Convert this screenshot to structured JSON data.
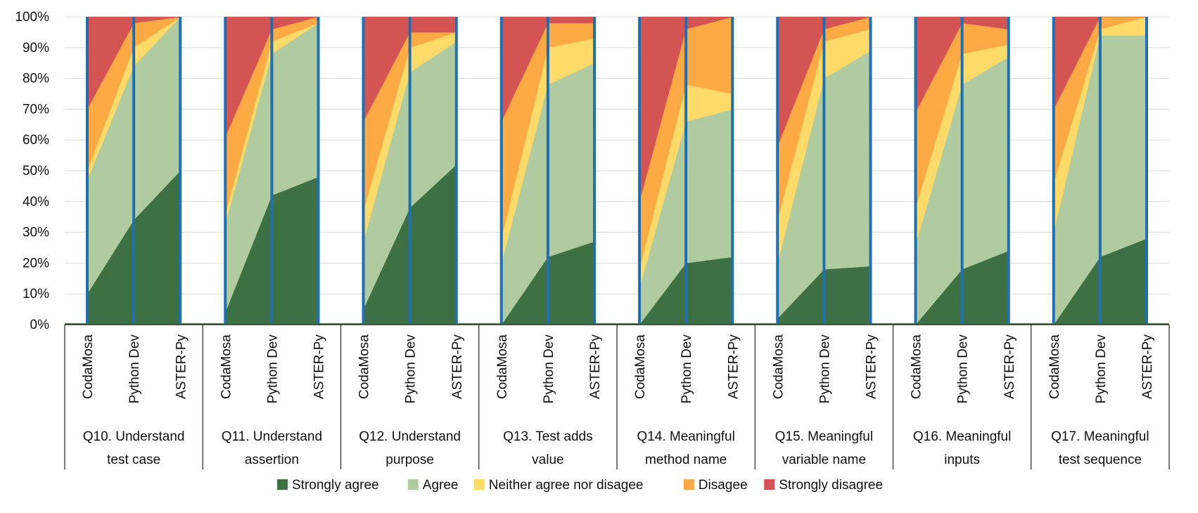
{
  "chart_data": {
    "type": "area",
    "title": "",
    "xlabel": "",
    "ylabel": "",
    "ylim": [
      0,
      100
    ],
    "y_ticks": [
      "0%",
      "10%",
      "20%",
      "30%",
      "40%",
      "50%",
      "60%",
      "70%",
      "80%",
      "90%",
      "100%"
    ],
    "grid": true,
    "legend_position": "bottom",
    "tools": [
      "CodaMosa",
      "Python Dev",
      "ASTER-Py"
    ],
    "series": [
      {
        "name": "Strongly agree",
        "color": "#3d7143"
      },
      {
        "name": "Agree",
        "color": "#afcb9f"
      },
      {
        "name": "Neither agree nor disagee",
        "color": "#fedb68"
      },
      {
        "name": "Disagee",
        "color": "#fdaa45"
      },
      {
        "name": "Strongly disagree",
        "color": "#d35453"
      }
    ],
    "groups": [
      {
        "label": "Q10. Understand test case",
        "values": [
          [
            10,
            37,
            3,
            20,
            30
          ],
          [
            34,
            50,
            6,
            8,
            2
          ],
          [
            50,
            50,
            0,
            0,
            0
          ]
        ]
      },
      {
        "label": "Q11. Understand assertion",
        "values": [
          [
            4,
            29,
            3,
            25,
            39
          ],
          [
            42,
            46,
            4,
            4,
            4
          ],
          [
            48,
            50,
            0,
            2,
            0
          ]
        ]
      },
      {
        "label": "Q12. Understand purpose",
        "values": [
          [
            5,
            22,
            10,
            29,
            34
          ],
          [
            38,
            44,
            8,
            5,
            5
          ],
          [
            52,
            40,
            3,
            0,
            5
          ]
        ]
      },
      {
        "label": "Q13. Test adds value",
        "values": [
          [
            0,
            20,
            8,
            38,
            34
          ],
          [
            22,
            56,
            12,
            8,
            2
          ],
          [
            27,
            58,
            8,
            5,
            2
          ]
        ]
      },
      {
        "label": "Q14. Meaningful method name",
        "values": [
          [
            0,
            12,
            6,
            22,
            60
          ],
          [
            20,
            46,
            12,
            18,
            4
          ],
          [
            22,
            48,
            5,
            25,
            0
          ]
        ]
      },
      {
        "label": "Q15. Meaningful variable name",
        "values": [
          [
            2,
            18,
            14,
            24,
            42
          ],
          [
            18,
            62,
            12,
            4,
            4
          ],
          [
            19,
            70,
            7,
            4,
            0
          ]
        ]
      },
      {
        "label": "Q16. Meaningful inputs",
        "values": [
          [
            0,
            26,
            12,
            31,
            31
          ],
          [
            18,
            60,
            10,
            10,
            2
          ],
          [
            24,
            63,
            4,
            5,
            4
          ]
        ]
      },
      {
        "label": "Q17. Meaningful test sequence",
        "values": [
          [
            0,
            30,
            16,
            24,
            30
          ],
          [
            22,
            72,
            2,
            4,
            0
          ],
          [
            28,
            66,
            6,
            0,
            0
          ]
        ]
      }
    ]
  }
}
